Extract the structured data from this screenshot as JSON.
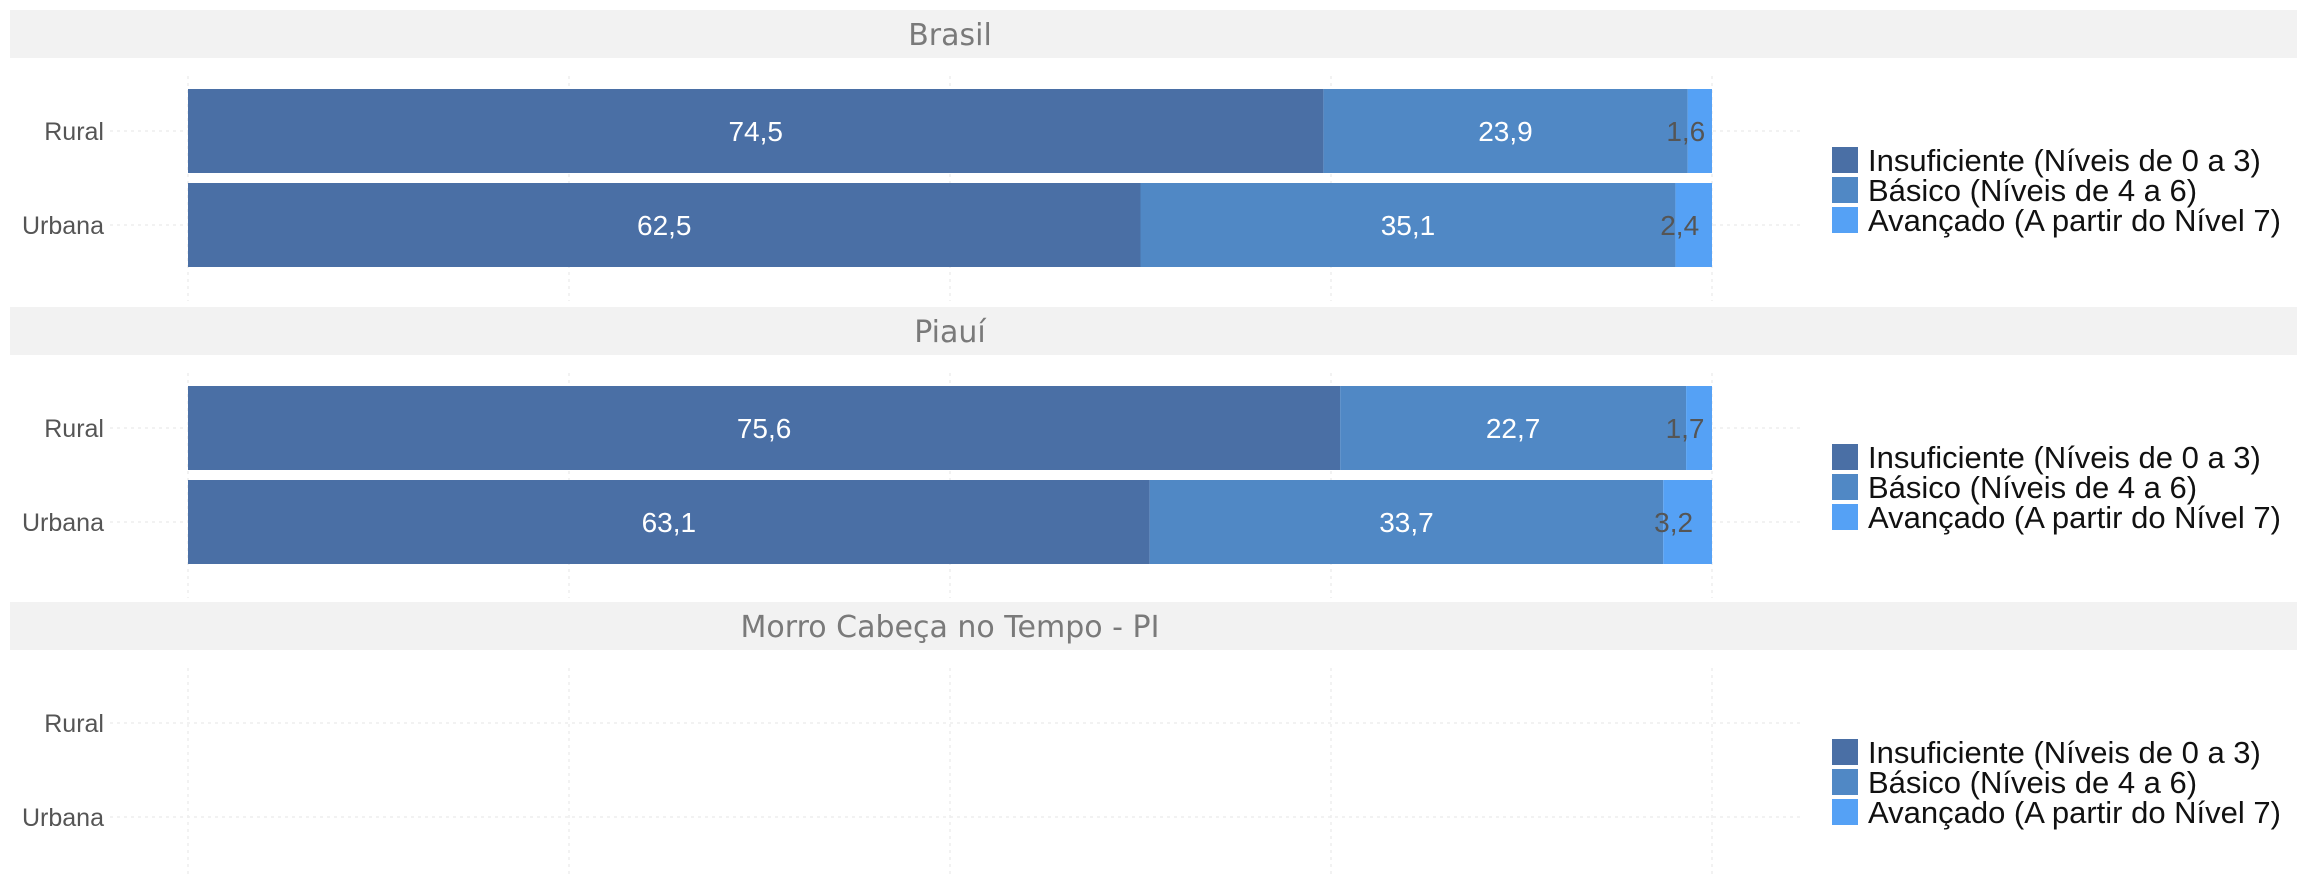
{
  "colors": {
    "insuficiente": "#4a6fa5",
    "basico": "#5088c5",
    "avancado": "#55a1f5",
    "strip_bg": "#f2f2f2",
    "strip_text": "#7a7a7a",
    "axis_text": "#555555",
    "label_light": "#ffffff",
    "label_dark": "#555555",
    "grid": "#eeeeee"
  },
  "legend": {
    "items": [
      {
        "key": "insuficiente",
        "label": "Insuficiente (Níveis de 0 a 3)"
      },
      {
        "key": "basico",
        "label": "Básico (Níveis de 4 a 6)"
      },
      {
        "key": "avancado",
        "label": "Avançado (A partir do Nível 7)"
      }
    ]
  },
  "chart_data": {
    "type": "bar",
    "orientation": "horizontal",
    "stacked": true,
    "xlim": [
      0,
      100
    ],
    "grid": true,
    "legend_position": "right",
    "categories": [
      "Rural",
      "Urbana"
    ],
    "series_keys": [
      "insuficiente",
      "basico",
      "avancado"
    ],
    "panels": [
      {
        "title": "Brasil",
        "rows": [
          {
            "category": "Rural",
            "values": [
              74.5,
              23.9,
              1.6
            ],
            "labels": [
              "74,5",
              "23,9",
              "1,6"
            ]
          },
          {
            "category": "Urbana",
            "values": [
              62.5,
              35.1,
              2.4
            ],
            "labels": [
              "62,5",
              "35,1",
              "2,4"
            ]
          }
        ]
      },
      {
        "title": "Piauí",
        "rows": [
          {
            "category": "Rural",
            "values": [
              75.6,
              22.7,
              1.7
            ],
            "labels": [
              "75,6",
              "22,7",
              "1,7"
            ]
          },
          {
            "category": "Urbana",
            "values": [
              63.1,
              33.7,
              3.2
            ],
            "labels": [
              "63,1",
              "33,7",
              "3,2"
            ]
          }
        ]
      },
      {
        "title": "Morro Cabeça no Tempo - PI",
        "rows": [
          {
            "category": "Rural",
            "values": [],
            "labels": []
          },
          {
            "category": "Urbana",
            "values": [],
            "labels": []
          }
        ]
      }
    ]
  }
}
